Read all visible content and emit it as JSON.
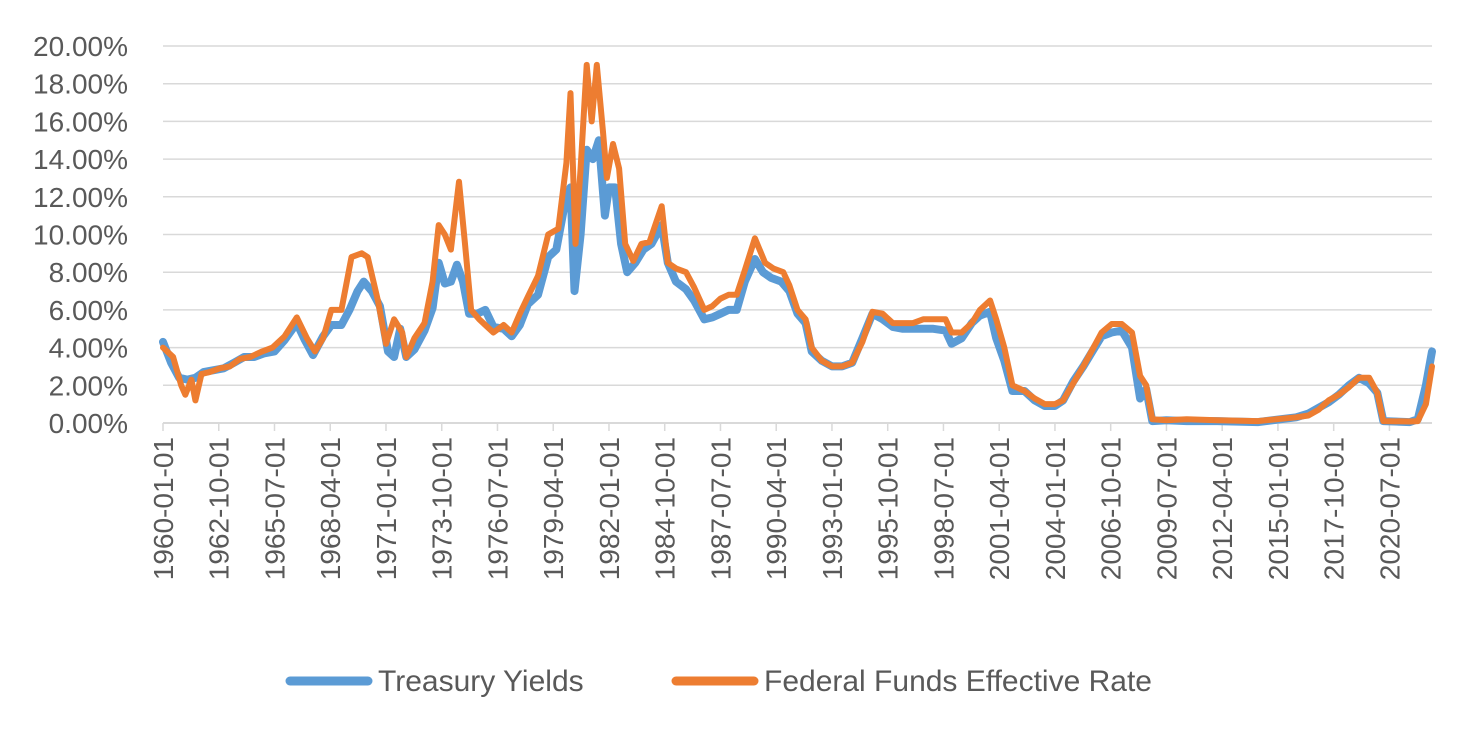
{
  "chart_data": {
    "type": "line",
    "title": "",
    "xlabel": "",
    "ylabel": "",
    "ylim": [
      0,
      20
    ],
    "y_ticks": [
      "0.00%",
      "2.00%",
      "4.00%",
      "6.00%",
      "8.00%",
      "10.00%",
      "12.00%",
      "14.00%",
      "16.00%",
      "18.00%",
      "20.00%"
    ],
    "x_tick_labels": [
      "1960-01-01",
      "1962-10-01",
      "1965-07-01",
      "1968-04-01",
      "1971-01-01",
      "1973-10-01",
      "1976-07-01",
      "1979-04-01",
      "1982-01-01",
      "1984-10-01",
      "1987-07-01",
      "1990-04-01",
      "1993-01-01",
      "1995-10-01",
      "1998-07-01",
      "2001-04-01",
      "2004-01-01",
      "2006-10-01",
      "2009-07-01",
      "2012-04-01",
      "2015-01-01",
      "2017-10-01",
      "2020-07-01"
    ],
    "x_range": [
      1960.0,
      2022.6
    ],
    "legend_position": "bottom",
    "grid": true,
    "series": [
      {
        "name": "Treasury Yields",
        "color": "#5B9BD5",
        "points": [
          [
            1960.0,
            4.3
          ],
          [
            1960.4,
            3.2
          ],
          [
            1960.8,
            2.4
          ],
          [
            1961.2,
            2.3
          ],
          [
            1961.6,
            2.4
          ],
          [
            1962.0,
            2.7
          ],
          [
            1962.5,
            2.8
          ],
          [
            1963.0,
            2.9
          ],
          [
            1963.5,
            3.2
          ],
          [
            1964.0,
            3.5
          ],
          [
            1964.5,
            3.5
          ],
          [
            1965.0,
            3.7
          ],
          [
            1965.5,
            3.8
          ],
          [
            1966.0,
            4.4
          ],
          [
            1966.6,
            5.3
          ],
          [
            1967.0,
            4.4
          ],
          [
            1967.4,
            3.6
          ],
          [
            1967.9,
            4.6
          ],
          [
            1968.3,
            5.2
          ],
          [
            1968.8,
            5.2
          ],
          [
            1969.2,
            6.0
          ],
          [
            1969.6,
            7.0
          ],
          [
            1969.9,
            7.5
          ],
          [
            1970.3,
            7.0
          ],
          [
            1970.7,
            6.2
          ],
          [
            1971.1,
            3.8
          ],
          [
            1971.4,
            3.5
          ],
          [
            1971.7,
            5.0
          ],
          [
            1972.0,
            3.5
          ],
          [
            1972.4,
            3.9
          ],
          [
            1972.9,
            4.9
          ],
          [
            1973.3,
            6.1
          ],
          [
            1973.6,
            8.5
          ],
          [
            1973.9,
            7.4
          ],
          [
            1974.2,
            7.5
          ],
          [
            1974.5,
            8.4
          ],
          [
            1974.8,
            7.5
          ],
          [
            1975.1,
            5.8
          ],
          [
            1975.5,
            5.8
          ],
          [
            1975.9,
            6.0
          ],
          [
            1976.3,
            5.1
          ],
          [
            1976.8,
            5.0
          ],
          [
            1977.2,
            4.6
          ],
          [
            1977.6,
            5.2
          ],
          [
            1978.0,
            6.3
          ],
          [
            1978.5,
            6.8
          ],
          [
            1979.0,
            8.8
          ],
          [
            1979.4,
            9.2
          ],
          [
            1979.8,
            11.5
          ],
          [
            1980.1,
            12.5
          ],
          [
            1980.3,
            7.0
          ],
          [
            1980.6,
            10.0
          ],
          [
            1980.9,
            14.5
          ],
          [
            1981.2,
            14.0
          ],
          [
            1981.5,
            15.0
          ],
          [
            1981.8,
            11.0
          ],
          [
            1982.0,
            12.5
          ],
          [
            1982.3,
            12.5
          ],
          [
            1982.6,
            9.5
          ],
          [
            1982.9,
            8.0
          ],
          [
            1983.3,
            8.5
          ],
          [
            1983.7,
            9.2
          ],
          [
            1984.1,
            9.5
          ],
          [
            1984.6,
            10.5
          ],
          [
            1984.9,
            8.5
          ],
          [
            1985.3,
            7.5
          ],
          [
            1985.8,
            7.1
          ],
          [
            1986.2,
            6.5
          ],
          [
            1986.7,
            5.5
          ],
          [
            1987.1,
            5.6
          ],
          [
            1987.5,
            5.8
          ],
          [
            1987.9,
            6.0
          ],
          [
            1988.3,
            6.0
          ],
          [
            1988.7,
            7.5
          ],
          [
            1989.2,
            8.7
          ],
          [
            1989.6,
            8.0
          ],
          [
            1990.0,
            7.7
          ],
          [
            1990.5,
            7.5
          ],
          [
            1990.9,
            7.0
          ],
          [
            1991.3,
            5.8
          ],
          [
            1991.7,
            5.3
          ],
          [
            1992.0,
            3.8
          ],
          [
            1992.5,
            3.3
          ],
          [
            1993.0,
            3.0
          ],
          [
            1993.5,
            3.0
          ],
          [
            1994.0,
            3.2
          ],
          [
            1994.5,
            4.5
          ],
          [
            1995.0,
            5.8
          ],
          [
            1995.5,
            5.5
          ],
          [
            1996.0,
            5.1
          ],
          [
            1996.5,
            5.0
          ],
          [
            1997.0,
            5.0
          ],
          [
            1997.5,
            5.0
          ],
          [
            1998.0,
            5.0
          ],
          [
            1998.6,
            4.9
          ],
          [
            1998.9,
            4.2
          ],
          [
            1999.4,
            4.5
          ],
          [
            1999.9,
            5.3
          ],
          [
            2000.3,
            5.7
          ],
          [
            2000.8,
            5.9
          ],
          [
            2001.1,
            4.5
          ],
          [
            2001.5,
            3.3
          ],
          [
            2001.9,
            1.7
          ],
          [
            2002.5,
            1.7
          ],
          [
            2003.0,
            1.2
          ],
          [
            2003.5,
            0.9
          ],
          [
            2004.0,
            0.9
          ],
          [
            2004.4,
            1.2
          ],
          [
            2004.9,
            2.2
          ],
          [
            2005.4,
            3.0
          ],
          [
            2005.9,
            3.9
          ],
          [
            2006.3,
            4.6
          ],
          [
            2006.8,
            4.8
          ],
          [
            2007.3,
            4.9
          ],
          [
            2007.8,
            4.0
          ],
          [
            2008.2,
            1.3
          ],
          [
            2008.5,
            1.8
          ],
          [
            2008.8,
            0.1
          ],
          [
            2009.5,
            0.15
          ],
          [
            2010.5,
            0.1
          ],
          [
            2012.0,
            0.1
          ],
          [
            2014.0,
            0.05
          ],
          [
            2015.9,
            0.3
          ],
          [
            2016.5,
            0.5
          ],
          [
            2017.0,
            0.8
          ],
          [
            2017.5,
            1.1
          ],
          [
            2018.0,
            1.5
          ],
          [
            2018.5,
            2.0
          ],
          [
            2019.0,
            2.4
          ],
          [
            2019.5,
            2.1
          ],
          [
            2019.9,
            1.6
          ],
          [
            2020.2,
            0.1
          ],
          [
            2021.5,
            0.05
          ],
          [
            2021.9,
            0.2
          ],
          [
            2022.3,
            2.0
          ],
          [
            2022.6,
            3.8
          ]
        ]
      },
      {
        "name": "Federal Funds Effective Rate",
        "color": "#ED7D31",
        "points": [
          [
            1960.0,
            4.0
          ],
          [
            1960.5,
            3.5
          ],
          [
            1960.9,
            2.0
          ],
          [
            1961.1,
            1.5
          ],
          [
            1961.4,
            2.3
          ],
          [
            1961.6,
            1.2
          ],
          [
            1961.9,
            2.6
          ],
          [
            1962.3,
            2.7
          ],
          [
            1962.8,
            2.9
          ],
          [
            1963.3,
            3.0
          ],
          [
            1963.8,
            3.4
          ],
          [
            1964.3,
            3.5
          ],
          [
            1964.9,
            3.8
          ],
          [
            1965.4,
            4.0
          ],
          [
            1966.0,
            4.6
          ],
          [
            1966.6,
            5.6
          ],
          [
            1967.1,
            4.5
          ],
          [
            1967.5,
            3.8
          ],
          [
            1967.9,
            4.5
          ],
          [
            1968.3,
            6.0
          ],
          [
            1968.8,
            6.0
          ],
          [
            1969.3,
            8.8
          ],
          [
            1969.8,
            9.0
          ],
          [
            1970.1,
            8.8
          ],
          [
            1970.6,
            6.5
          ],
          [
            1971.0,
            4.2
          ],
          [
            1971.4,
            5.5
          ],
          [
            1971.8,
            4.8
          ],
          [
            1972.0,
            3.5
          ],
          [
            1972.4,
            4.5
          ],
          [
            1972.9,
            5.3
          ],
          [
            1973.3,
            7.5
          ],
          [
            1973.6,
            10.5
          ],
          [
            1973.9,
            10.0
          ],
          [
            1974.2,
            9.2
          ],
          [
            1974.6,
            12.8
          ],
          [
            1974.9,
            9.5
          ],
          [
            1975.2,
            6.0
          ],
          [
            1975.6,
            5.5
          ],
          [
            1975.9,
            5.2
          ],
          [
            1976.3,
            4.8
          ],
          [
            1976.8,
            5.2
          ],
          [
            1977.2,
            4.8
          ],
          [
            1977.6,
            5.8
          ],
          [
            1978.0,
            6.7
          ],
          [
            1978.5,
            7.8
          ],
          [
            1979.0,
            10.0
          ],
          [
            1979.5,
            10.3
          ],
          [
            1979.9,
            13.8
          ],
          [
            1980.1,
            17.5
          ],
          [
            1980.35,
            9.5
          ],
          [
            1980.6,
            13.5
          ],
          [
            1980.9,
            19.0
          ],
          [
            1981.15,
            16.0
          ],
          [
            1981.4,
            19.0
          ],
          [
            1981.7,
            15.5
          ],
          [
            1981.9,
            13.0
          ],
          [
            1982.2,
            14.8
          ],
          [
            1982.5,
            13.5
          ],
          [
            1982.8,
            9.5
          ],
          [
            1983.2,
            8.6
          ],
          [
            1983.6,
            9.5
          ],
          [
            1984.0,
            9.6
          ],
          [
            1984.6,
            11.5
          ],
          [
            1984.9,
            8.5
          ],
          [
            1985.3,
            8.2
          ],
          [
            1985.8,
            8.0
          ],
          [
            1986.2,
            7.2
          ],
          [
            1986.7,
            6.0
          ],
          [
            1987.1,
            6.2
          ],
          [
            1987.5,
            6.6
          ],
          [
            1987.9,
            6.8
          ],
          [
            1988.3,
            6.8
          ],
          [
            1988.7,
            8.1
          ],
          [
            1989.2,
            9.8
          ],
          [
            1989.7,
            8.5
          ],
          [
            1990.1,
            8.2
          ],
          [
            1990.6,
            8.0
          ],
          [
            1990.9,
            7.3
          ],
          [
            1991.3,
            6.0
          ],
          [
            1991.7,
            5.5
          ],
          [
            1992.0,
            4.0
          ],
          [
            1992.5,
            3.3
          ],
          [
            1993.0,
            3.0
          ],
          [
            1993.5,
            3.0
          ],
          [
            1994.0,
            3.2
          ],
          [
            1994.5,
            4.3
          ],
          [
            1995.0,
            5.9
          ],
          [
            1995.5,
            5.8
          ],
          [
            1996.0,
            5.3
          ],
          [
            1996.5,
            5.3
          ],
          [
            1997.0,
            5.3
          ],
          [
            1997.5,
            5.5
          ],
          [
            1998.0,
            5.5
          ],
          [
            1998.6,
            5.5
          ],
          [
            1998.9,
            4.8
          ],
          [
            1999.4,
            4.8
          ],
          [
            1999.9,
            5.3
          ],
          [
            2000.3,
            6.0
          ],
          [
            2000.8,
            6.5
          ],
          [
            2001.1,
            5.5
          ],
          [
            2001.5,
            4.0
          ],
          [
            2001.9,
            2.0
          ],
          [
            2002.5,
            1.7
          ],
          [
            2003.0,
            1.3
          ],
          [
            2003.5,
            1.0
          ],
          [
            2004.0,
            1.0
          ],
          [
            2004.4,
            1.2
          ],
          [
            2004.9,
            2.1
          ],
          [
            2005.4,
            3.0
          ],
          [
            2005.9,
            4.0
          ],
          [
            2006.3,
            4.8
          ],
          [
            2006.8,
            5.25
          ],
          [
            2007.3,
            5.25
          ],
          [
            2007.8,
            4.8
          ],
          [
            2008.2,
            2.5
          ],
          [
            2008.5,
            2.0
          ],
          [
            2008.8,
            0.2
          ],
          [
            2009.5,
            0.15
          ],
          [
            2010.5,
            0.2
          ],
          [
            2012.0,
            0.15
          ],
          [
            2014.0,
            0.1
          ],
          [
            2015.9,
            0.3
          ],
          [
            2016.5,
            0.4
          ],
          [
            2017.0,
            0.7
          ],
          [
            2017.5,
            1.2
          ],
          [
            2018.0,
            1.5
          ],
          [
            2018.5,
            1.9
          ],
          [
            2019.0,
            2.4
          ],
          [
            2019.5,
            2.4
          ],
          [
            2019.9,
            1.6
          ],
          [
            2020.2,
            0.1
          ],
          [
            2021.5,
            0.08
          ],
          [
            2021.9,
            0.1
          ],
          [
            2022.3,
            1.0
          ],
          [
            2022.6,
            3.0
          ]
        ]
      }
    ]
  }
}
